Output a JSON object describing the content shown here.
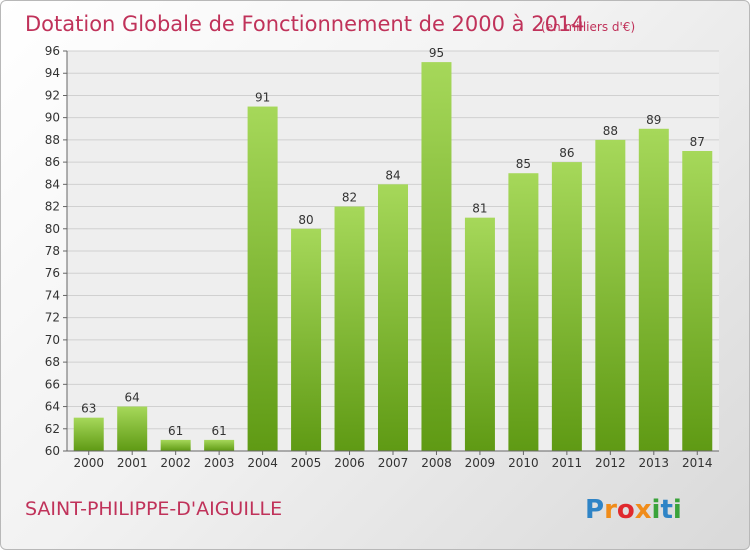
{
  "chart_data": {
    "type": "bar",
    "title": "Dotation Globale de Fonctionnement de 2000 à 2014",
    "subtitle": "(en milliers d'€)",
    "categories": [
      "2000",
      "2001",
      "2002",
      "2003",
      "2004",
      "2005",
      "2006",
      "2007",
      "2008",
      "2009",
      "2010",
      "2011",
      "2012",
      "2013",
      "2014"
    ],
    "values": [
      63,
      64,
      61,
      61,
      91,
      80,
      82,
      84,
      95,
      81,
      85,
      86,
      88,
      89,
      87
    ],
    "ylim": [
      60,
      96
    ],
    "yticks": [
      60,
      62,
      64,
      66,
      68,
      70,
      72,
      74,
      76,
      78,
      80,
      82,
      84,
      86,
      88,
      90,
      92,
      94,
      96
    ],
    "grid": true,
    "bar_color_top": "#a6d85a",
    "bar_color_bottom": "#5f9a14"
  },
  "location": "SAINT-PHILIPPE-D'AIGUILLE",
  "logo": "Proxiti"
}
